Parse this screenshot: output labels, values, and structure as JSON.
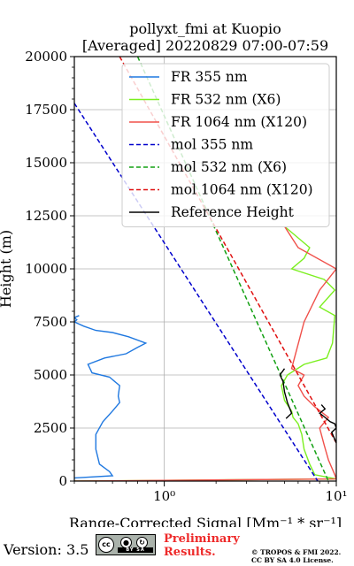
{
  "chart_data": {
    "type": "line",
    "title": "pollyxt_fmi at Kuopio",
    "subtitle": "[Averaged] 20220829 07:00-07:59",
    "xlabel": "Range-Corrected Signal [Mm⁻¹ * sr⁻¹]",
    "ylabel": "Height (m)",
    "xscale": "log",
    "xlim": [
      0.3,
      10
    ],
    "ylim": [
      0,
      20000
    ],
    "x_ticks": [
      {
        "value": 1,
        "label": "10⁰"
      },
      {
        "value": 10,
        "label": "10¹"
      }
    ],
    "y_ticks": [
      0,
      2500,
      5000,
      7500,
      10000,
      12500,
      15000,
      17500,
      20000
    ],
    "grid": true,
    "legend_position": "top-right",
    "series": [
      {
        "name": "FR 355 nm",
        "color": "#1f78e0",
        "style": "solid",
        "x": [
          0.3,
          0.5,
          0.48,
          0.42,
          0.4,
          0.4,
          0.44,
          0.5,
          0.55,
          0.54,
          0.55,
          0.48,
          0.38,
          0.36,
          0.45,
          0.6,
          0.7,
          0.78,
          0.62,
          0.5,
          0.4,
          0.34,
          0.3,
          0.31,
          0.3,
          0.32
        ],
        "y": [
          150,
          250,
          450,
          800,
          1500,
          2200,
          2800,
          3300,
          3700,
          4000,
          4500,
          4900,
          5100,
          5500,
          5800,
          6000,
          6300,
          6500,
          6800,
          7000,
          7100,
          7300,
          7500,
          7600,
          7700,
          7800
        ]
      },
      {
        "name": "FR 532 nm (X6)",
        "color": "#7bef1f",
        "style": "solid",
        "x": [
          0.3,
          10,
          7.5,
          7.0,
          6.5,
          6.3,
          6.0,
          5.6,
          5.5,
          5.0,
          4.8,
          5.2,
          6.5,
          8.8,
          9.5,
          9.8,
          8.0,
          9.8,
          8.5,
          5.5,
          6.5,
          7.0,
          5.0
        ],
        "y": [
          0,
          100,
          300,
          800,
          1500,
          2200,
          2700,
          3000,
          3300,
          3800,
          4500,
          5000,
          5500,
          5800,
          6500,
          7800,
          8200,
          9000,
          9500,
          10000,
          10500,
          11000,
          12000
        ]
      },
      {
        "name": "FR 1064 nm (X120)",
        "color": "#f0504a",
        "style": "solid",
        "x": [
          0.3,
          10,
          9.8,
          9.0,
          8.5,
          8.0,
          9.0,
          7.5,
          6.5,
          6.0,
          6.5,
          5.5,
          6.5,
          8.0,
          10.0,
          6.0,
          5.0
        ],
        "y": [
          0,
          100,
          300,
          1000,
          1700,
          2500,
          3000,
          3500,
          4000,
          4500,
          5000,
          5300,
          7500,
          9000,
          10000,
          11000,
          12000
        ]
      },
      {
        "name": "mol 355 nm",
        "color": "#0000cc",
        "style": "dashed",
        "x": [
          0.3,
          7.8
        ],
        "y": [
          17800,
          0
        ]
      },
      {
        "name": "mol 532 nm (X6)",
        "color": "#12a012",
        "style": "dashed",
        "x": [
          0.7,
          9.0
        ],
        "y": [
          20000,
          0
        ]
      },
      {
        "name": "mol 1064 nm (X120)",
        "color": "#e01010",
        "style": "dashed",
        "x": [
          0.55,
          10
        ],
        "y": [
          20000,
          1800
        ]
      },
      {
        "name": "Reference Height",
        "color": "#000000",
        "style": "solid",
        "group": 1,
        "x": [
          5.0,
          4.7,
          4.9,
          5.0,
          5.2,
          5.5,
          5.1
        ],
        "y": [
          5300,
          5000,
          4700,
          4200,
          3700,
          3200,
          2950
        ]
      },
      {
        "name": "Reference Height",
        "color": "#000000",
        "style": "solid",
        "group": 2,
        "x": [
          8.2,
          8.6,
          8.0,
          8.6,
          9.2,
          9.8,
          10.0,
          9.4,
          10.0
        ],
        "y": [
          3600,
          3400,
          3200,
          3000,
          2800,
          2700,
          2500,
          2300,
          1800
        ]
      }
    ]
  },
  "footer": {
    "version": "Version: 3.5",
    "preliminary": "Preliminary",
    "results": "Results.",
    "copyright_line1": "© TROPOS & FMI 2022.",
    "copyright_line2": "CC BY SA 4.0 License.",
    "cc_text": "cc",
    "cc_strip": "BY SA"
  }
}
